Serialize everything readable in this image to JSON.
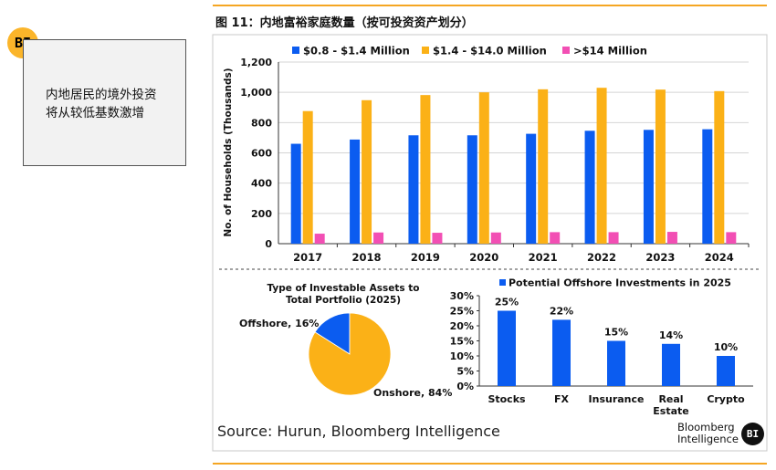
{
  "logo_text": "BI",
  "callout_lines": [
    "内地居民的境外投资",
    "将从较低基数激增"
  ],
  "figure_title": "图 11：内地富裕家庭数量（按可投资资产划分）",
  "source": "Source: Hurun, Bloomberg Intelligence",
  "footer_brand": [
    "Bloomberg",
    "Intelligence"
  ],
  "footer_logo": "BI",
  "colors": {
    "blue": "#0b5cf0",
    "orange": "#fbb117",
    "pink": "#f24fb4",
    "rule": "#f5a623"
  },
  "chart_data": [
    {
      "type": "bar",
      "categories": [
        "2017",
        "2018",
        "2019",
        "2020",
        "2021",
        "2022",
        "2023",
        "2024"
      ],
      "series": [
        {
          "name": "$0.8 - $1.4 Million",
          "values": [
            660,
            688,
            716,
            716,
            726,
            746,
            752,
            756
          ]
        },
        {
          "name": "$1.4 - $14.0 Million",
          "values": [
            876,
            948,
            982,
            1000,
            1020,
            1030,
            1018,
            1008
          ]
        },
        {
          "name": ">$14 Million",
          "values": [
            66,
            74,
            72,
            74,
            76,
            76,
            78,
            76
          ]
        }
      ],
      "ylabel": "No. of Households (Thousands)",
      "ylim": [
        0,
        1200
      ],
      "yticks": [
        "0",
        "200",
        "400",
        "600",
        "800",
        "1,000",
        "1,200"
      ],
      "grid": true,
      "legend": "top"
    },
    {
      "type": "pie",
      "title": "Type of Investable Assets to Total Portfolio (2025)",
      "title_lines": [
        "Type of Investable Assets to",
        "Total Portfolio (2025)"
      ],
      "slices": [
        {
          "label": "Offshore",
          "value": 16,
          "display": "Offshore, 16%"
        },
        {
          "label": "Onshore",
          "value": 84,
          "display": "Onshore, 84%"
        }
      ]
    },
    {
      "type": "bar",
      "legend_label": "Potential Offshore Investments in 2025",
      "categories": [
        "Stocks",
        "FX",
        "Insurance",
        "Real Estate",
        "Crypto"
      ],
      "category_lines": [
        [
          "Stocks"
        ],
        [
          "FX"
        ],
        [
          "Insurance"
        ],
        [
          "Real",
          "Estate"
        ],
        [
          "Crypto"
        ]
      ],
      "values": [
        25,
        22,
        15,
        14,
        10
      ],
      "data_labels": [
        "25%",
        "22%",
        "15%",
        "14%",
        "10%"
      ],
      "ylim": [
        0,
        30
      ],
      "yticks": [
        "0%",
        "5%",
        "10%",
        "15%",
        "20%",
        "25%",
        "30%"
      ]
    }
  ]
}
